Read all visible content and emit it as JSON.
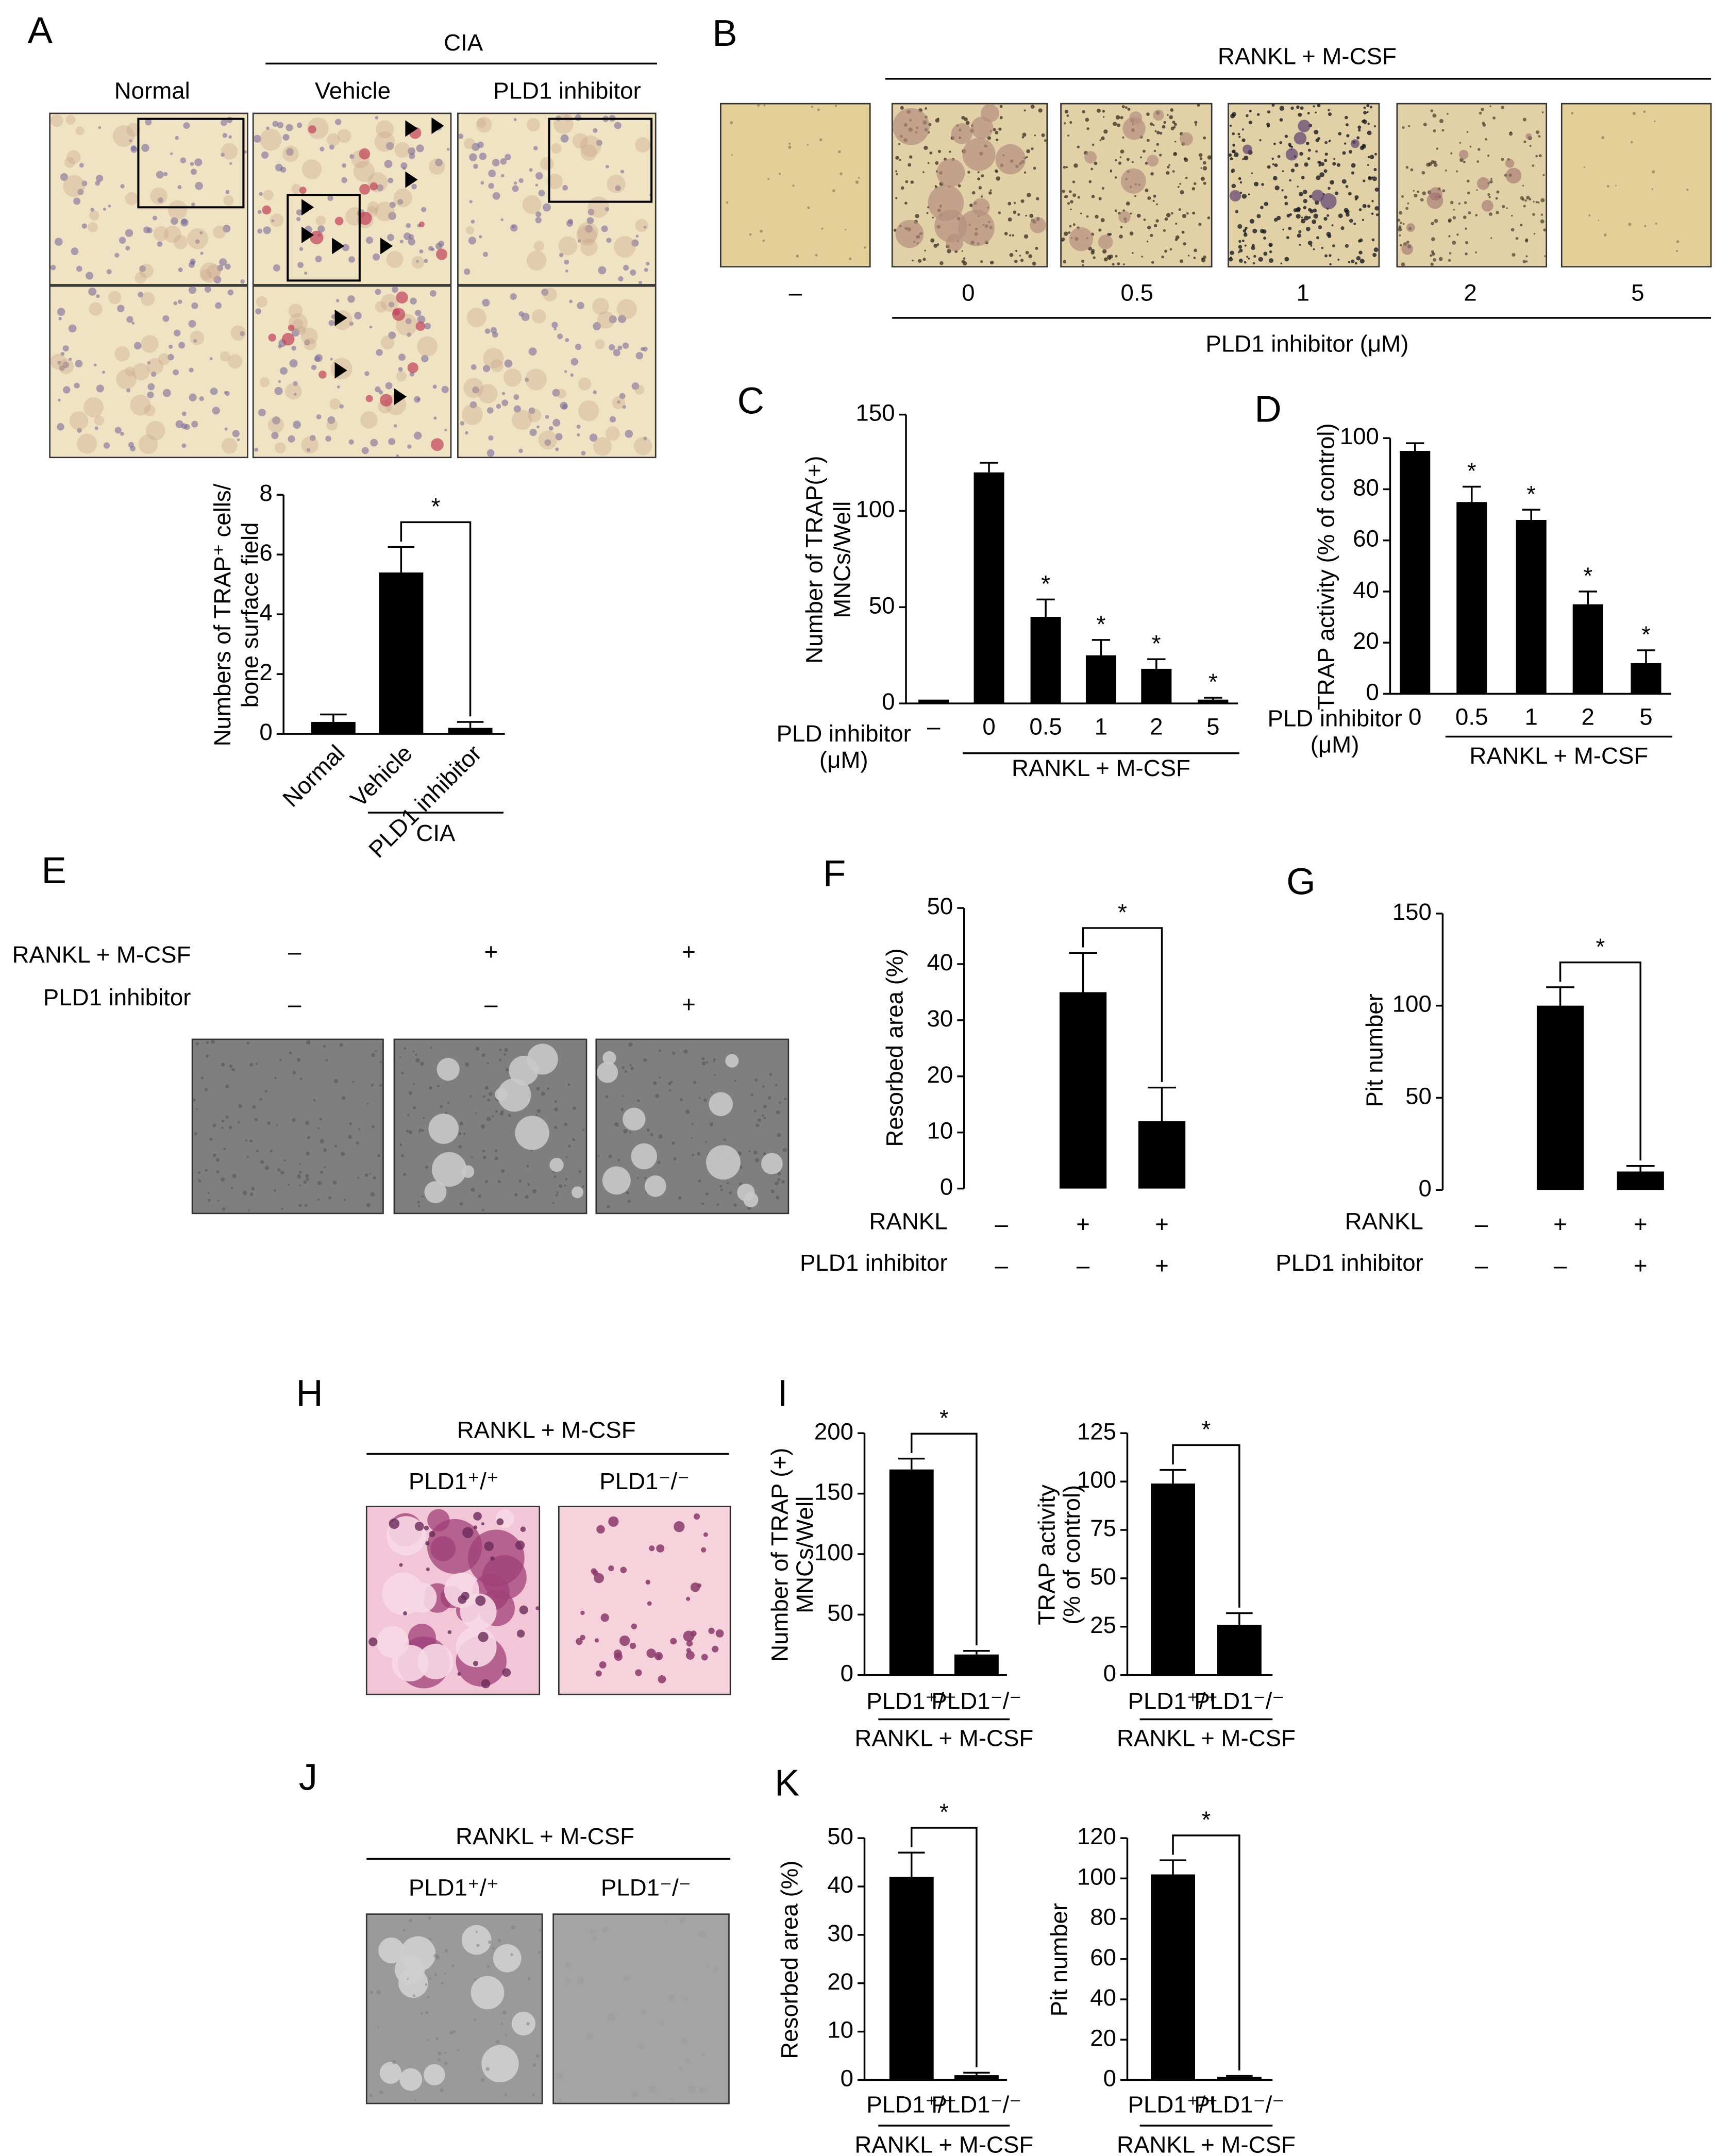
{
  "figure": {
    "A": {
      "panel": "A",
      "group": "CIA",
      "columns": [
        "Normal",
        "Vehicle",
        "PLD1 inhibitor"
      ]
    },
    "B": {
      "panel": "B",
      "treatment": "RANKL + M-CSF",
      "doses": [
        "–",
        "0",
        "0.5",
        "1",
        "2",
        "5"
      ],
      "dose_label": "PLD1 inhibitor (μM)"
    },
    "E": {
      "panel": "E",
      "rows": [
        {
          "name": "RANKL + M-CSF",
          "values": [
            "–",
            "+",
            "+"
          ]
        },
        {
          "name": "PLD1 inhibitor",
          "values": [
            "–",
            "–",
            "+"
          ]
        }
      ]
    },
    "H": {
      "panel": "H",
      "treatment": "RANKL + M-CSF",
      "genotypes": [
        "PLD1⁺/⁺",
        "PLD1⁻/⁻"
      ]
    },
    "J": {
      "panel": "J",
      "treatment": "RANKL + M-CSF",
      "genotypes": [
        "PLD1⁺/⁺",
        "PLD1⁻/⁻"
      ]
    }
  },
  "chart_data": [
    {
      "type": "bar",
      "ylabel": [
        "Numbers of TRAP⁺ cells/",
        "bone surface field"
      ],
      "categories": [
        "Normal",
        "Vehicle",
        "PLD1 inhibitor"
      ],
      "values": [
        0.4,
        5.4,
        0.2
      ],
      "errors": [
        0.25,
        0.85,
        0.2
      ],
      "color": "#000000",
      "ylim": [
        0,
        8
      ],
      "yticks": [
        0,
        2,
        4,
        6,
        8
      ],
      "bracket": "*",
      "group": {
        "label": "CIA",
        "members": [
          "Vehicle",
          "PLD1 inhibitor"
        ]
      }
    },
    {
      "type": "bar",
      "panel": "C",
      "ylabel": [
        "Number of TRAP(+)",
        "MNCs/Well"
      ],
      "row_label": [
        "PLD inhibitor",
        "(μM)"
      ],
      "categories": [
        "–",
        "0",
        "0.5",
        "1",
        "2",
        "5"
      ],
      "values": [
        2,
        120,
        45,
        25,
        18,
        2
      ],
      "errors": [
        0,
        5,
        9,
        8,
        5,
        1
      ],
      "stars": [
        null,
        null,
        "*",
        "*",
        "*",
        "*"
      ],
      "color": "#000000",
      "ylim": [
        0,
        150
      ],
      "yticks": [
        0,
        50,
        100,
        150
      ],
      "group": {
        "label": "RANKL + M-CSF",
        "members": [
          "0",
          "0.5",
          "1",
          "2",
          "5"
        ]
      }
    },
    {
      "type": "bar",
      "panel": "D",
      "ylabel": [
        "TRAP activity (% of control)"
      ],
      "row_label": [
        "PLD inhibitor",
        "(μM)"
      ],
      "categories": [
        "0",
        "0.5",
        "1",
        "2",
        "5"
      ],
      "values": [
        95,
        75,
        68,
        35,
        12
      ],
      "errors": [
        3,
        6,
        4,
        5,
        5
      ],
      "stars": [
        null,
        "*",
        "*",
        "*",
        "*"
      ],
      "color": "#000000",
      "ylim": [
        0,
        100
      ],
      "yticks": [
        0,
        20,
        40,
        60,
        80,
        100
      ],
      "group": {
        "label": "RANKL + M-CSF",
        "members": [
          "0.5",
          "1",
          "2",
          "5"
        ]
      }
    },
    {
      "type": "bar",
      "panel": "F",
      "ylabel": [
        "Resorbed area (%)"
      ],
      "values": [
        0,
        35,
        12
      ],
      "errors": [
        0,
        7,
        6
      ],
      "color": "#000000",
      "ylim": [
        0,
        50
      ],
      "yticks": [
        0,
        10,
        20,
        30,
        40,
        50
      ],
      "bracket": "*",
      "conditions": [
        {
          "name": "RANKL",
          "values": [
            "–",
            "+",
            "+"
          ]
        },
        {
          "name": "PLD1 inhibitor",
          "values": [
            "–",
            "–",
            "+"
          ]
        }
      ]
    },
    {
      "type": "bar",
      "panel": "G",
      "ylabel": [
        "Pit number"
      ],
      "values": [
        0,
        100,
        10
      ],
      "errors": [
        0,
        10,
        3
      ],
      "color": "#000000",
      "ylim": [
        0,
        150
      ],
      "yticks": [
        0,
        50,
        100,
        150
      ],
      "bracket": "*",
      "conditions": [
        {
          "name": "RANKL",
          "values": [
            "–",
            "+",
            "+"
          ]
        },
        {
          "name": "PLD1 inhibitor",
          "values": [
            "–",
            "–",
            "+"
          ]
        }
      ]
    },
    {
      "type": "bar",
      "panel": "I",
      "ylabel": [
        "Number of TRAP (+)",
        "MNCs/Well"
      ],
      "categories": [
        "PLD1⁺/⁺",
        "PLD1⁻/⁻"
      ],
      "values": [
        170,
        17
      ],
      "errors": [
        9,
        3
      ],
      "color": "#000000",
      "ylim": [
        0,
        200
      ],
      "yticks": [
        0,
        50,
        100,
        150,
        200
      ],
      "bracket": "*",
      "group": {
        "label": "RANKL + M-CSF",
        "members": [
          "PLD1⁺/⁺",
          "PLD1⁻/⁻"
        ]
      }
    },
    {
      "type": "bar",
      "ylabel": [
        "TRAP activity",
        "(% of control)"
      ],
      "categories": [
        "PLD1⁺/⁺",
        "PLD1⁻/⁻"
      ],
      "values": [
        99,
        26
      ],
      "errors": [
        7,
        6
      ],
      "color": "#000000",
      "ylim": [
        0,
        125
      ],
      "yticks": [
        0,
        25,
        50,
        75,
        100,
        125
      ],
      "bracket": "*",
      "group": {
        "label": "RANKL + M-CSF",
        "members": [
          "PLD1⁺/⁺",
          "PLD1⁻/⁻"
        ]
      }
    },
    {
      "type": "bar",
      "panel": "K",
      "ylabel": [
        "Resorbed area (%)"
      ],
      "categories": [
        "PLD1⁺/⁺",
        "PLD1⁻/⁻"
      ],
      "values": [
        42,
        1
      ],
      "errors": [
        5,
        0.5
      ],
      "color": "#000000",
      "ylim": [
        0,
        50
      ],
      "yticks": [
        0,
        10,
        20,
        30,
        40,
        50
      ],
      "bracket": "*",
      "group": {
        "label": "RANKL + M-CSF",
        "members": [
          "PLD1⁺/⁺",
          "PLD1⁻/⁻"
        ]
      }
    },
    {
      "type": "bar",
      "ylabel": [
        "Pit number"
      ],
      "categories": [
        "PLD1⁺/⁺",
        "PLD1⁻/⁻"
      ],
      "values": [
        102,
        1.5
      ],
      "errors": [
        7,
        0.5
      ],
      "color": "#000000",
      "ylim": [
        0,
        120
      ],
      "yticks": [
        0,
        20,
        40,
        60,
        80,
        100,
        120
      ],
      "bracket": "*",
      "group": {
        "label": "RANKL + M-CSF",
        "members": [
          "PLD1⁺/⁺",
          "PLD1⁻/⁻"
        ]
      }
    }
  ]
}
